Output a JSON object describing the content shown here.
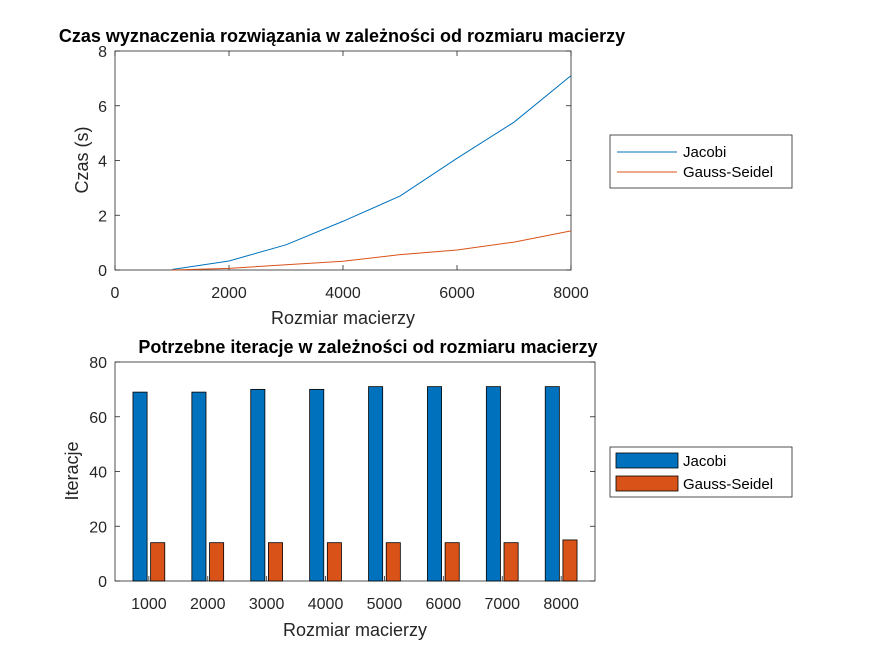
{
  "chart_data": [
    {
      "type": "line",
      "title": "Czas wyznaczenia rozwiązania w zależności od rozmiaru macierzy",
      "xlabel": "Rozmiar macierzy",
      "ylabel": "Czas (s)",
      "xlim": [
        0,
        8000
      ],
      "ylim": [
        0,
        8
      ],
      "xticks": [
        0,
        2000,
        4000,
        6000,
        8000
      ],
      "yticks": [
        0,
        2,
        4,
        6,
        8
      ],
      "grid": false,
      "legend_position": "outside-right",
      "x": [
        1000,
        2000,
        3000,
        4000,
        5000,
        6000,
        7000,
        8000
      ],
      "series": [
        {
          "name": "Jacobi",
          "color": "#0072BD",
          "values": [
            0.02,
            0.33,
            0.92,
            1.78,
            2.7,
            4.08,
            5.4,
            7.1
          ]
        },
        {
          "name": "Gauss-Seidel",
          "color": "#D95319",
          "values": [
            0.0,
            0.06,
            0.19,
            0.32,
            0.56,
            0.73,
            1.02,
            1.43
          ]
        }
      ]
    },
    {
      "type": "bar",
      "title": "Potrzebne iteracje w zależności od rozmiaru macierzy",
      "xlabel": "Rozmiar macierzy",
      "ylabel": "Iteracje",
      "ylim": [
        0,
        80
      ],
      "yticks": [
        0,
        20,
        40,
        60,
        80
      ],
      "grid": false,
      "legend_position": "outside-right",
      "categories": [
        "1000",
        "2000",
        "3000",
        "4000",
        "5000",
        "6000",
        "7000",
        "8000"
      ],
      "series": [
        {
          "name": "Jacobi",
          "color": "#0072BD",
          "values": [
            69,
            69,
            70,
            70,
            71,
            71,
            71,
            71
          ]
        },
        {
          "name": "Gauss-Seidel",
          "color": "#D95319",
          "values": [
            14,
            14,
            14,
            14,
            14,
            14,
            14,
            15
          ]
        }
      ]
    }
  ]
}
